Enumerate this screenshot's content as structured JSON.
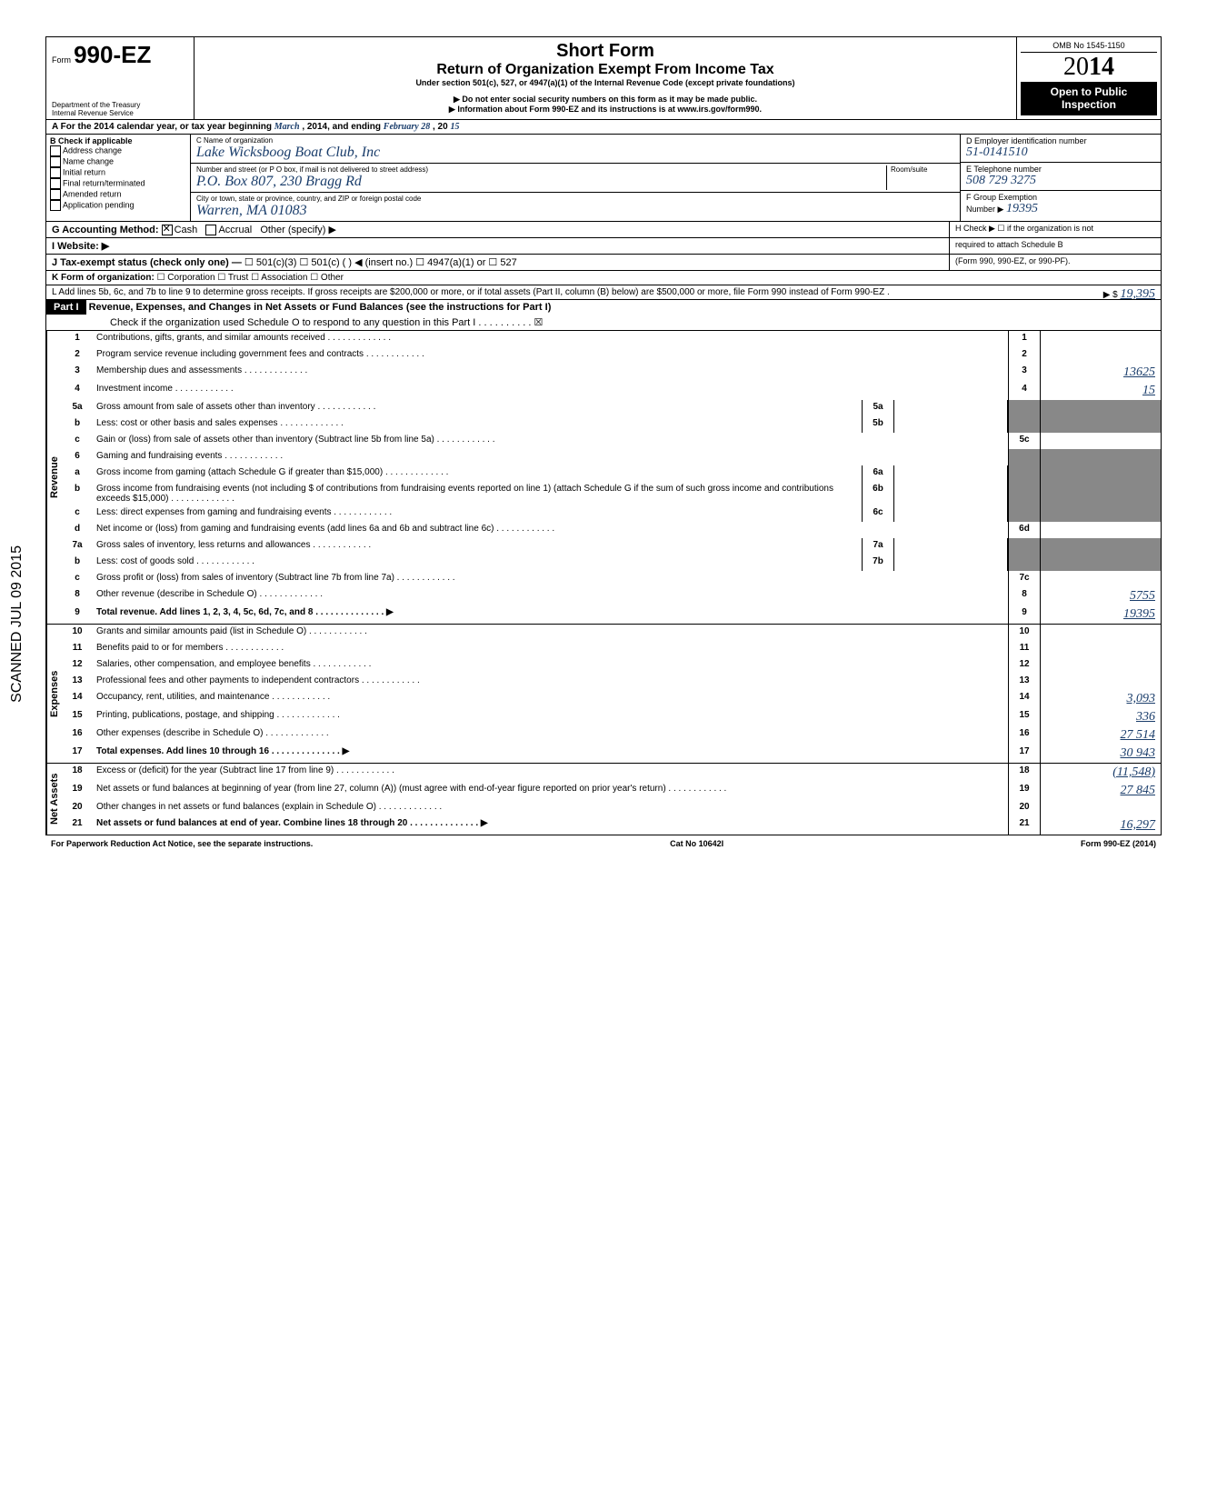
{
  "scanned_stamp": "SCANNED JUL 09 2015",
  "header": {
    "form_prefix": "Form",
    "form_number": "990-EZ",
    "dept": "Department of the Treasury\nInternal Revenue Service",
    "title_short": "Short Form",
    "title_main": "Return of Organization Exempt From Income Tax",
    "title_under": "Under section 501(c), 527, or 4947(a)(1) of the Internal Revenue Code (except private foundations)",
    "warn1": "▶ Do not enter social security numbers on this form as it may be made public.",
    "warn2": "▶ Information about Form 990-EZ and its instructions is at www.irs.gov/form990.",
    "omb": "OMB No 1545-1150",
    "year_prefix": "20",
    "year_bold": "14",
    "inspection_l1": "Open to Public",
    "inspection_l2": "Inspection"
  },
  "period": {
    "label_a": "A  For the 2014 calendar year, or tax year beginning",
    "begin_hand": "March",
    "mid": ", 2014, and ending",
    "end_hand": "February 28",
    "end_suffix": ", 20",
    "end_year_hand": "15"
  },
  "section_b": {
    "label": "B  Check if applicable",
    "opts": [
      "Address change",
      "Name change",
      "Initial return",
      "Final return/terminated",
      "Amended return",
      "Application pending"
    ]
  },
  "section_c": {
    "name_label": "C  Name of organization",
    "name_hand": "Lake Wicksboog Boat Club, Inc",
    "addr_label": "Number and street (or P O box, if mail is not delivered to street address)",
    "room_label": "Room/suite",
    "addr_hand": "P.O. Box 807, 230 Bragg Rd",
    "city_label": "City or town, state or province, country, and ZIP or foreign postal code",
    "city_hand": "Warren, MA  01083"
  },
  "section_d": {
    "label": "D  Employer identification number",
    "hand": "51-0141510"
  },
  "section_e": {
    "label": "E  Telephone number",
    "hand": "508  729 3275"
  },
  "section_f": {
    "label": "F  Group Exemption",
    "num_label": "Number ▶",
    "hand": "19395"
  },
  "section_g": {
    "label": "G  Accounting Method:",
    "cash": "Cash",
    "accrual": "Accrual",
    "other": "Other (specify) ▶"
  },
  "section_h": {
    "label": "H  Check ▶ ☐ if the organization is not",
    "l2": "required to attach Schedule B",
    "l3": "(Form 990, 990-EZ, or 990-PF)."
  },
  "section_i": {
    "label": "I  Website: ▶"
  },
  "section_j": {
    "label": "J  Tax-exempt status (check only one) —",
    "opts": "☐ 501(c)(3)   ☐ 501(c) (       ) ◀ (insert no.)  ☐ 4947(a)(1) or   ☐ 527"
  },
  "section_k": {
    "label": "K  Form of organization:",
    "opts": "☐ Corporation    ☐ Trust    ☐ Association    ☐ Other"
  },
  "section_l": {
    "text": "L  Add lines 5b, 6c, and 7b to line 9 to determine gross receipts. If gross receipts are $200,000 or more, or if total assets (Part II, column (B) below) are $500,000 or more, file Form 990 instead of Form 990-EZ .",
    "arrow": "▶  $",
    "hand": "19,395"
  },
  "part1": {
    "header": "Part I",
    "title": "Revenue, Expenses, and Changes in Net Assets or Fund Balances (see the instructions for Part I)",
    "check_text": "Check if the organization used Schedule O to respond to any question in this Part I  . . . . . . . . . .  ☒"
  },
  "revenue_label": "Revenue",
  "expenses_label": "Expenses",
  "netassets_label": "Net Assets",
  "lines": {
    "l1": {
      "n": "1",
      "t": "Contributions, gifts, grants, and similar amounts received .",
      "box": "1",
      "v": ""
    },
    "l2": {
      "n": "2",
      "t": "Program service revenue including government fees and contracts",
      "box": "2",
      "v": ""
    },
    "l3": {
      "n": "3",
      "t": "Membership dues and assessments .",
      "box": "3",
      "v": "13625"
    },
    "l4": {
      "n": "4",
      "t": "Investment income",
      "box": "4",
      "v": "15"
    },
    "l5a": {
      "n": "5a",
      "t": "Gross amount from sale of assets other than inventory",
      "mbox": "5a"
    },
    "l5b": {
      "n": "b",
      "t": "Less: cost or other basis and sales expenses .",
      "mbox": "5b"
    },
    "l5c": {
      "n": "c",
      "t": "Gain or (loss) from sale of assets other than inventory (Subtract line 5b from line 5a)",
      "box": "5c",
      "v": ""
    },
    "l6": {
      "n": "6",
      "t": "Gaming and fundraising events"
    },
    "l6a": {
      "n": "a",
      "t": "Gross income from gaming (attach Schedule G if greater than $15,000) .",
      "mbox": "6a"
    },
    "l6b": {
      "n": "b",
      "t": "Gross income from fundraising events (not including  $                    of contributions from fundraising events reported on line 1) (attach Schedule G if the sum of such gross income and contributions exceeds $15,000) .",
      "mbox": "6b"
    },
    "l6c": {
      "n": "c",
      "t": "Less: direct expenses from gaming and fundraising events",
      "mbox": "6c"
    },
    "l6d": {
      "n": "d",
      "t": "Net income or (loss) from gaming and fundraising events (add lines 6a and 6b and subtract line 6c)",
      "box": "6d",
      "v": ""
    },
    "l7a": {
      "n": "7a",
      "t": "Gross sales of inventory, less returns and allowances",
      "mbox": "7a"
    },
    "l7b": {
      "n": "b",
      "t": "Less: cost of goods sold",
      "mbox": "7b"
    },
    "l7c": {
      "n": "c",
      "t": "Gross profit or (loss) from sales of inventory (Subtract line 7b from line 7a)",
      "box": "7c",
      "v": ""
    },
    "l8": {
      "n": "8",
      "t": "Other revenue (describe in Schedule O) .",
      "box": "8",
      "v": "5755"
    },
    "l9": {
      "n": "9",
      "t": "Total revenue. Add lines 1, 2, 3, 4, 5c, 6d, 7c, and 8",
      "box": "9",
      "v": "19395",
      "arrow": "▶"
    },
    "l10": {
      "n": "10",
      "t": "Grants and similar amounts paid (list in Schedule O)",
      "box": "10",
      "v": ""
    },
    "l11": {
      "n": "11",
      "t": "Benefits paid to or for members",
      "box": "11",
      "v": ""
    },
    "l12": {
      "n": "12",
      "t": "Salaries, other compensation, and employee benefits",
      "box": "12",
      "v": ""
    },
    "l13": {
      "n": "13",
      "t": "Professional fees and other payments to independent contractors",
      "box": "13",
      "v": ""
    },
    "l14": {
      "n": "14",
      "t": "Occupancy, rent, utilities, and maintenance",
      "box": "14",
      "v": "3,093"
    },
    "l15": {
      "n": "15",
      "t": "Printing, publications, postage, and shipping .",
      "box": "15",
      "v": "336"
    },
    "l16": {
      "n": "16",
      "t": "Other expenses (describe in Schedule O) .",
      "box": "16",
      "v": "27 514"
    },
    "l17": {
      "n": "17",
      "t": "Total expenses. Add lines 10 through 16",
      "box": "17",
      "v": "30 943",
      "arrow": "▶"
    },
    "l18": {
      "n": "18",
      "t": "Excess or (deficit) for the year (Subtract line 17 from line 9)",
      "box": "18",
      "v": "(11,548)"
    },
    "l19": {
      "n": "19",
      "t": "Net assets or fund balances at beginning of year (from line 27, column (A)) (must agree with end-of-year figure reported on prior year's return)",
      "box": "19",
      "v": "27 845"
    },
    "l20": {
      "n": "20",
      "t": "Other changes in net assets or fund balances (explain in Schedule O) .",
      "box": "20",
      "v": ""
    },
    "l21": {
      "n": "21",
      "t": "Net assets or fund balances at end of year. Combine lines 18 through 20",
      "box": "21",
      "v": "16,297",
      "arrow": "▶"
    }
  },
  "footer": {
    "left": "For Paperwork Reduction Act Notice, see the separate instructions.",
    "mid": "Cat No 10642I",
    "right": "Form 990-EZ (2014)"
  }
}
